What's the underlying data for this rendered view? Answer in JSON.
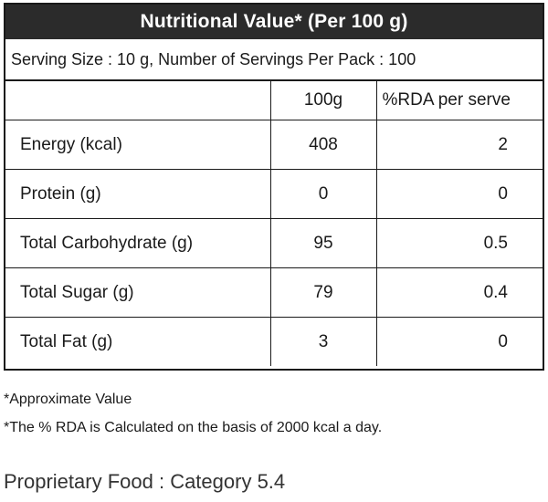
{
  "label": {
    "title": "Nutritional Value* (Per 100 g)",
    "serving_info": "Serving Size :  10 g, Number of Servings Per Pack : 100",
    "columns": {
      "nutrient": "",
      "per_100g": "100g",
      "rda": "%RDA per serve"
    },
    "rows": [
      {
        "name": "Energy (kcal)",
        "per_100g": "408",
        "rda": "2"
      },
      {
        "name": "Protein (g)",
        "per_100g": "0",
        "rda": "0"
      },
      {
        "name": "Total Carbohydrate (g)",
        "per_100g": "95",
        "rda": "0.5"
      },
      {
        "name": "Total Sugar (g)",
        "per_100g": "79",
        "rda": "0.4"
      },
      {
        "name": "Total Fat (g)",
        "per_100g": "3",
        "rda": "0"
      }
    ]
  },
  "notes": {
    "approximate": "*Approximate Value",
    "rda_basis": "*The % RDA is Calculated on the basis of 2000 kcal a day."
  },
  "category": "Proprietary Food : Category 5.4",
  "colors": {
    "title_bar_bg": "#2b2b2b",
    "title_text": "#ffffff",
    "border": "#1a1a1a"
  }
}
